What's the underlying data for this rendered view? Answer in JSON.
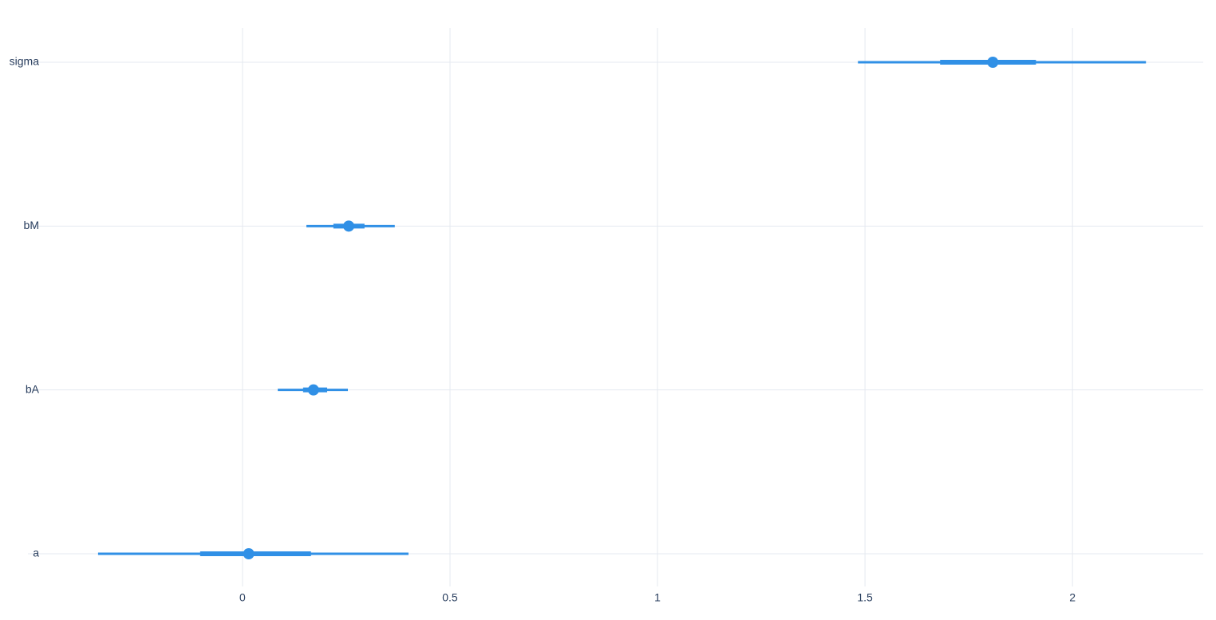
{
  "chart_data": {
    "type": "forest",
    "categories": [
      "a",
      "bA",
      "bM",
      "sigma"
    ],
    "series": [
      {
        "color": "#3090e6",
        "values": [
          0.015,
          0.171,
          0.256,
          1.808
        ],
        "inner_low": [
          -0.102,
          0.146,
          0.219,
          1.681
        ],
        "inner_high": [
          0.165,
          0.204,
          0.294,
          1.912
        ],
        "outer_low": [
          -0.348,
          0.085,
          0.154,
          1.483
        ],
        "outer_high": [
          0.4,
          0.254,
          0.367,
          2.177
        ]
      }
    ],
    "xlim": [
      -0.517,
      2.315
    ],
    "xticks": [
      0,
      0.5,
      1,
      1.5,
      2
    ],
    "grid": true
  }
}
